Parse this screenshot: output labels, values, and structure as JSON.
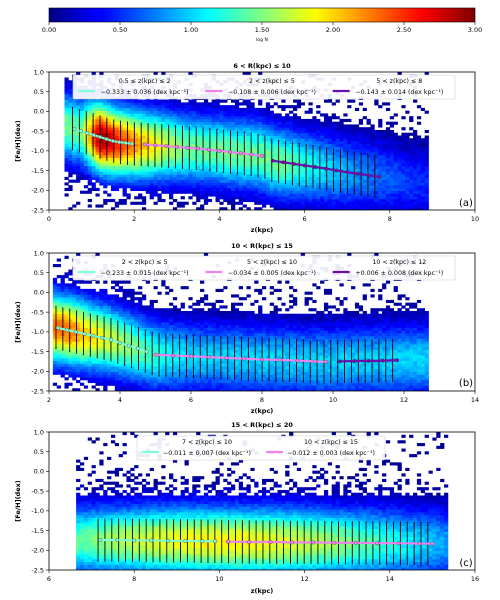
{
  "colorbar": {
    "ticks": [
      "0.00",
      "0.50",
      "1.00",
      "1.50",
      "2.00",
      "2.50",
      "3.00"
    ],
    "tick_values": [
      0,
      0.5,
      1,
      1.5,
      2,
      2.5,
      3
    ],
    "range": [
      0,
      3
    ],
    "label": "log N",
    "colormap": "jet"
  },
  "chart_data": [
    {
      "type": "heatmap",
      "panel": "a",
      "panel_label": "(a)",
      "title": "6 < R(kpc) ≤ 10",
      "xlabel": "z(kpc)",
      "ylabel": "[Fe/H](dex)",
      "xlim": [
        0,
        10
      ],
      "ylim": [
        -2.5,
        1.0
      ],
      "xticks": [
        "0",
        "2",
        "4",
        "6",
        "8",
        "10"
      ],
      "xtick_values": [
        0,
        2,
        4,
        6,
        8,
        10
      ],
      "yticks": [
        "-2.5",
        "-2.0",
        "-1.5",
        "-1.0",
        "-0.5",
        "0.0",
        "0.5",
        "1.0"
      ],
      "ytick_values": [
        -2.5,
        -2.0,
        -1.5,
        -1.0,
        -0.5,
        0.0,
        0.5,
        1.0
      ],
      "density": {
        "xmin": 0.35,
        "xmax": 8.9,
        "peak_z": 1.2,
        "peak_logN": 3.0,
        "falloff_z": 2.8
      },
      "series": [
        {
          "name": "0.5 ≤ z(kpc) ≤ 2",
          "fit": "−0.333 ± 0.036 (dex kpc⁻¹)",
          "color": "#7fffd4",
          "x": [
            0.6,
            0.75,
            0.9,
            1.05,
            1.2,
            1.35,
            1.5,
            1.65,
            1.8,
            1.95
          ],
          "y": [
            -0.45,
            -0.5,
            -0.55,
            -0.6,
            -0.65,
            -0.7,
            -0.75,
            -0.78,
            -0.8,
            -0.82
          ]
        },
        {
          "name": "2 < z(kpc) ≤ 5",
          "fit": "−0.108 ± 0.006 (dex kpc⁻¹)",
          "color": "#ee82ee",
          "x": [
            2.25,
            2.5,
            2.75,
            3.0,
            3.25,
            3.5,
            3.75,
            4.0,
            4.25,
            4.5,
            4.75,
            5.0
          ],
          "y": [
            -0.84,
            -0.86,
            -0.88,
            -0.9,
            -0.92,
            -0.94,
            -0.97,
            -1.0,
            -1.03,
            -1.06,
            -1.09,
            -1.13
          ]
        },
        {
          "name": "5 < z(kpc) ≤ 8",
          "fit": "−0.143 ± 0.014 (dex kpc⁻¹)",
          "color": "#6a0dad",
          "x": [
            5.25,
            5.5,
            5.75,
            6.0,
            6.25,
            6.5,
            6.75,
            7.0,
            7.25,
            7.5,
            7.75
          ],
          "y": [
            -1.25,
            -1.29,
            -1.33,
            -1.37,
            -1.41,
            -1.45,
            -1.5,
            -1.54,
            -1.58,
            -1.62,
            -1.66
          ]
        }
      ]
    },
    {
      "type": "heatmap",
      "panel": "b",
      "panel_label": "(b)",
      "title": "10 < R(kpc) ≤ 15",
      "xlabel": "z(kpc)",
      "ylabel": "[Fe/H](dex)",
      "xlim": [
        2,
        14
      ],
      "ylim": [
        -2.5,
        1.0
      ],
      "xticks": [
        "2",
        "4",
        "6",
        "8",
        "10",
        "12",
        "14"
      ],
      "xtick_values": [
        2,
        4,
        6,
        8,
        10,
        12,
        14
      ],
      "yticks": [
        "-2.5",
        "-2.0",
        "-1.5",
        "-1.0",
        "-0.5",
        "0.0",
        "0.5",
        "1.0"
      ],
      "ytick_values": [
        -2.5,
        -2.0,
        -1.5,
        -1.0,
        -0.5,
        0.0,
        0.5,
        1.0
      ],
      "density": {
        "xmin": 2.1,
        "xmax": 12.7,
        "peak_z": 2.6,
        "peak_logN": 2.3,
        "falloff_z": 4.0
      },
      "series": [
        {
          "name": "2 < z(kpc) ≤ 5",
          "fit": "−0.233 ± 0.015 (dex kpc⁻¹)",
          "color": "#7fffd4",
          "x": [
            2.25,
            2.5,
            2.75,
            3.0,
            3.25,
            3.5,
            3.75,
            4.0,
            4.25,
            4.5,
            4.75
          ],
          "y": [
            -0.9,
            -0.95,
            -1.0,
            -1.05,
            -1.1,
            -1.15,
            -1.2,
            -1.28,
            -1.35,
            -1.42,
            -1.5
          ]
        },
        {
          "name": "5 < z(kpc) ≤ 10",
          "fit": "−0.034 ± 0.005 (dex kpc⁻¹)",
          "color": "#ee82ee",
          "x": [
            5.0,
            5.5,
            6.0,
            6.5,
            7.0,
            7.5,
            8.0,
            8.5,
            9.0,
            9.5,
            9.8
          ],
          "y": [
            -1.58,
            -1.6,
            -1.62,
            -1.64,
            -1.66,
            -1.68,
            -1.7,
            -1.71,
            -1.73,
            -1.75,
            -1.76
          ]
        },
        {
          "name": "10 < z(kpc) ≤ 12",
          "fit": "+0.006 ± 0.008 (dex kpc⁻¹)",
          "color": "#6a0dad",
          "x": [
            10.2,
            10.6,
            11.0,
            11.4,
            11.8
          ],
          "y": [
            -1.75,
            -1.74,
            -1.74,
            -1.73,
            -1.72
          ]
        }
      ]
    },
    {
      "type": "heatmap",
      "panel": "c",
      "panel_label": "(c)",
      "title": "15 < R(kpc) ≤ 20",
      "xlabel": "z(kpc)",
      "ylabel": "[Fe/H](dex)",
      "xlim": [
        6,
        16
      ],
      "ylim": [
        -2.5,
        1.0
      ],
      "xticks": [
        "6",
        "8",
        "10",
        "12",
        "14",
        "16"
      ],
      "xtick_values": [
        6,
        8,
        10,
        12,
        14,
        16
      ],
      "yticks": [
        "-2.5",
        "-2.0",
        "-1.5",
        "-1.0",
        "-0.5",
        "0.0",
        "0.5",
        "1.0"
      ],
      "ytick_values": [
        -2.5,
        -2.0,
        -1.5,
        -1.0,
        -0.5,
        0.0,
        0.5,
        1.0
      ],
      "density": {
        "xmin": 6.6,
        "xmax": 15.4,
        "peak_z": 10.0,
        "peak_logN": 1.9,
        "falloff_z": 6.0
      },
      "series": [
        {
          "name": "7 < z(kpc) ≤ 10",
          "fit": "−0.011 ± 0.007 (dex kpc⁻¹)",
          "color": "#7fffd4",
          "x": [
            7.2,
            7.6,
            8.0,
            8.4,
            8.8,
            9.2,
            9.6,
            9.9
          ],
          "y": [
            -1.74,
            -1.74,
            -1.75,
            -1.75,
            -1.76,
            -1.76,
            -1.77,
            -1.77
          ]
        },
        {
          "name": "10 < z(kpc) ≤ 15",
          "fit": "−0.012 ± 0.003 (dex kpc⁻¹)",
          "color": "#ee82ee",
          "x": [
            10.2,
            10.7,
            11.2,
            11.7,
            12.2,
            12.7,
            13.2,
            13.7,
            14.2,
            14.7,
            15.0
          ],
          "y": [
            -1.78,
            -1.79,
            -1.79,
            -1.8,
            -1.8,
            -1.81,
            -1.81,
            -1.82,
            -1.82,
            -1.83,
            -1.83
          ]
        }
      ]
    }
  ]
}
